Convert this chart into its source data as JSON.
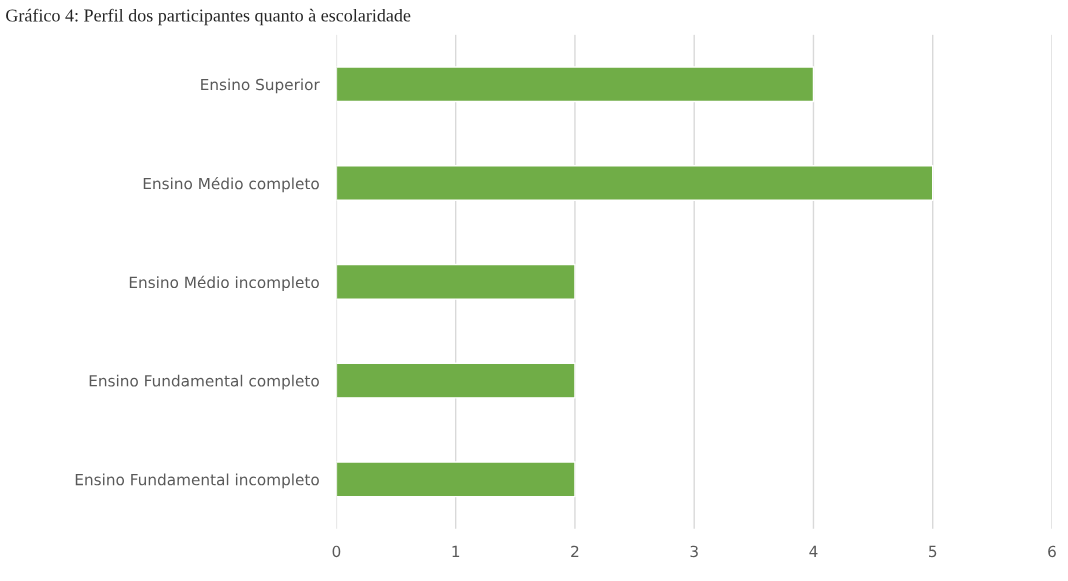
{
  "chart_data": {
    "type": "bar",
    "orientation": "horizontal",
    "title": "Gráfico 4: Perfil dos participantes quanto à escolaridade",
    "categories": [
      "Ensino Superior",
      "Ensino Médio completo",
      "Ensino Médio incompleto",
      "Ensino Fundamental completo",
      "Ensino Fundamental incompleto"
    ],
    "values": [
      4,
      5,
      2,
      2,
      2
    ],
    "color": "#70ad47",
    "xlim": [
      0,
      6
    ],
    "xticks": [
      0,
      1,
      2,
      3,
      4,
      5,
      6
    ],
    "grid": "x"
  }
}
